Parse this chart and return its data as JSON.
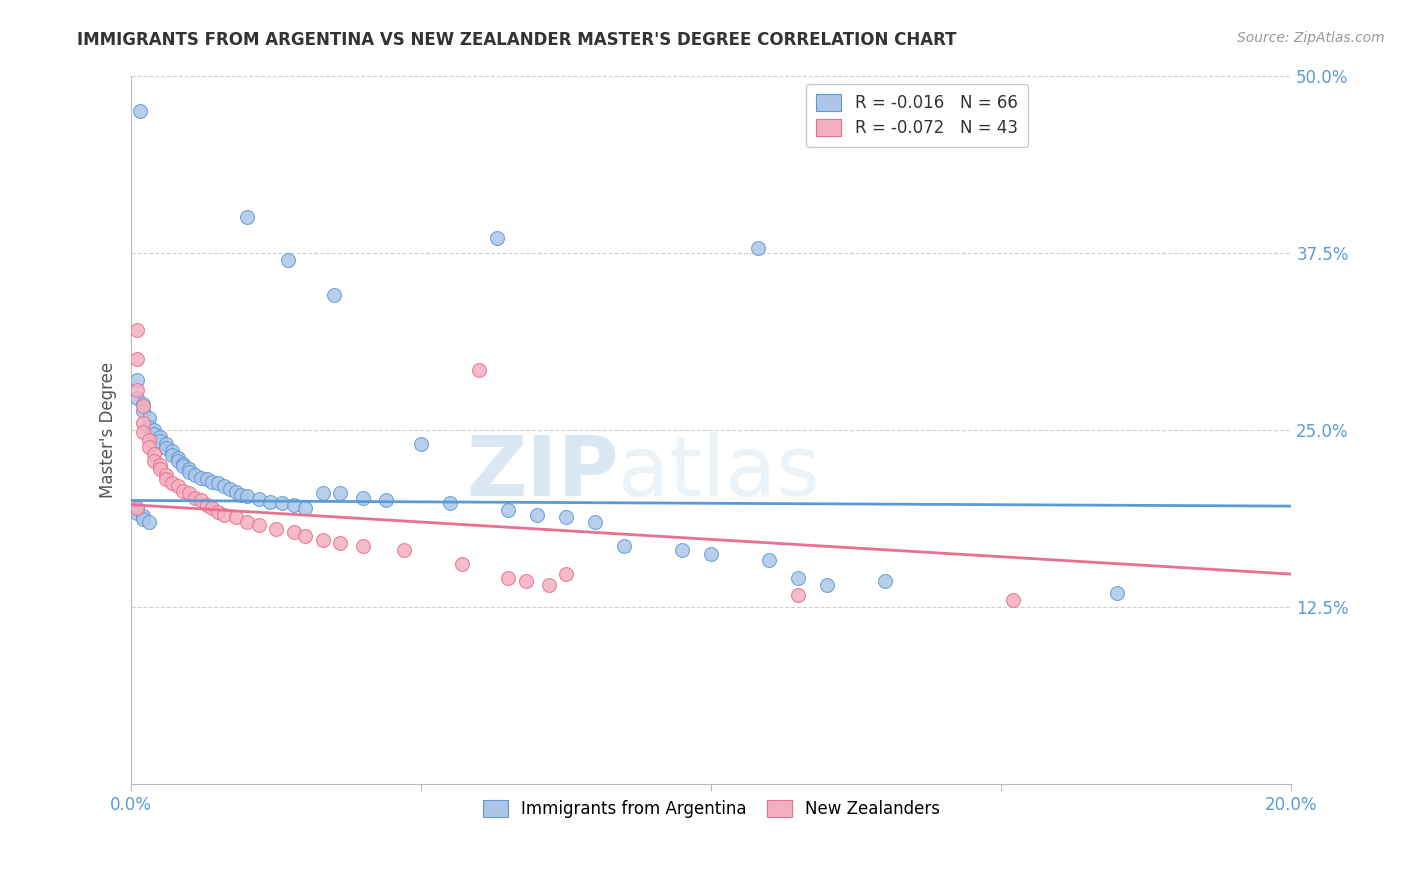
{
  "title": "IMMIGRANTS FROM ARGENTINA VS NEW ZEALANDER MASTER'S DEGREE CORRELATION CHART",
  "source": "Source: ZipAtlas.com",
  "ylabel_label": "Master's Degree",
  "xlim": [
    0.0,
    0.2
  ],
  "ylim": [
    0.0,
    0.5
  ],
  "xtick_positions": [
    0.0,
    0.05,
    0.1,
    0.15,
    0.2
  ],
  "xtick_labels": [
    "0.0%",
    "",
    "",
    "",
    "20.0%"
  ],
  "ytick_positions": [
    0.0,
    0.125,
    0.25,
    0.375,
    0.5
  ],
  "ytick_labels": [
    "",
    "12.5%",
    "25.0%",
    "37.5%",
    "50.0%"
  ],
  "watermark_zip": "ZIP",
  "watermark_atlas": "atlas",
  "blue_scatter": [
    [
      0.0015,
      0.475
    ],
    [
      0.02,
      0.4
    ],
    [
      0.027,
      0.37
    ],
    [
      0.035,
      0.345
    ],
    [
      0.063,
      0.385
    ],
    [
      0.108,
      0.378
    ],
    [
      0.001,
      0.285
    ],
    [
      0.001,
      0.272
    ],
    [
      0.002,
      0.268
    ],
    [
      0.002,
      0.263
    ],
    [
      0.003,
      0.258
    ],
    [
      0.003,
      0.252
    ],
    [
      0.004,
      0.25
    ],
    [
      0.004,
      0.247
    ],
    [
      0.005,
      0.245
    ],
    [
      0.005,
      0.242
    ],
    [
      0.006,
      0.24
    ],
    [
      0.006,
      0.237
    ],
    [
      0.007,
      0.235
    ],
    [
      0.007,
      0.232
    ],
    [
      0.008,
      0.23
    ],
    [
      0.008,
      0.228
    ],
    [
      0.009,
      0.226
    ],
    [
      0.009,
      0.224
    ],
    [
      0.01,
      0.222
    ],
    [
      0.01,
      0.22
    ],
    [
      0.011,
      0.218
    ],
    [
      0.012,
      0.216
    ],
    [
      0.013,
      0.215
    ],
    [
      0.014,
      0.213
    ],
    [
      0.015,
      0.212
    ],
    [
      0.016,
      0.21
    ],
    [
      0.017,
      0.208
    ],
    [
      0.018,
      0.206
    ],
    [
      0.019,
      0.204
    ],
    [
      0.02,
      0.203
    ],
    [
      0.022,
      0.201
    ],
    [
      0.024,
      0.199
    ],
    [
      0.026,
      0.198
    ],
    [
      0.028,
      0.197
    ],
    [
      0.03,
      0.195
    ],
    [
      0.033,
      0.205
    ],
    [
      0.036,
      0.205
    ],
    [
      0.04,
      0.202
    ],
    [
      0.044,
      0.2
    ],
    [
      0.05,
      0.24
    ],
    [
      0.055,
      0.198
    ],
    [
      0.065,
      0.193
    ],
    [
      0.07,
      0.19
    ],
    [
      0.075,
      0.188
    ],
    [
      0.08,
      0.185
    ],
    [
      0.085,
      0.168
    ],
    [
      0.095,
      0.165
    ],
    [
      0.1,
      0.162
    ],
    [
      0.11,
      0.158
    ],
    [
      0.115,
      0.145
    ],
    [
      0.12,
      0.14
    ],
    [
      0.13,
      0.143
    ],
    [
      0.17,
      0.135
    ],
    [
      0.001,
      0.195
    ],
    [
      0.001,
      0.193
    ],
    [
      0.001,
      0.191
    ],
    [
      0.002,
      0.189
    ],
    [
      0.002,
      0.187
    ],
    [
      0.003,
      0.185
    ]
  ],
  "pink_scatter": [
    [
      0.001,
      0.32
    ],
    [
      0.001,
      0.3
    ],
    [
      0.001,
      0.278
    ],
    [
      0.002,
      0.267
    ],
    [
      0.002,
      0.255
    ],
    [
      0.002,
      0.248
    ],
    [
      0.003,
      0.243
    ],
    [
      0.003,
      0.238
    ],
    [
      0.004,
      0.233
    ],
    [
      0.004,
      0.228
    ],
    [
      0.005,
      0.225
    ],
    [
      0.005,
      0.222
    ],
    [
      0.006,
      0.218
    ],
    [
      0.006,
      0.215
    ],
    [
      0.007,
      0.212
    ],
    [
      0.008,
      0.21
    ],
    [
      0.009,
      0.207
    ],
    [
      0.01,
      0.205
    ],
    [
      0.011,
      0.202
    ],
    [
      0.012,
      0.2
    ],
    [
      0.013,
      0.197
    ],
    [
      0.014,
      0.195
    ],
    [
      0.015,
      0.192
    ],
    [
      0.016,
      0.19
    ],
    [
      0.018,
      0.188
    ],
    [
      0.02,
      0.185
    ],
    [
      0.022,
      0.183
    ],
    [
      0.025,
      0.18
    ],
    [
      0.028,
      0.178
    ],
    [
      0.03,
      0.175
    ],
    [
      0.033,
      0.172
    ],
    [
      0.036,
      0.17
    ],
    [
      0.04,
      0.168
    ],
    [
      0.047,
      0.165
    ],
    [
      0.057,
      0.155
    ],
    [
      0.06,
      0.292
    ],
    [
      0.065,
      0.145
    ],
    [
      0.068,
      0.143
    ],
    [
      0.072,
      0.14
    ],
    [
      0.075,
      0.148
    ],
    [
      0.115,
      0.133
    ],
    [
      0.152,
      0.13
    ],
    [
      0.001,
      0.195
    ]
  ],
  "blue_line_x": [
    0.0,
    0.2
  ],
  "blue_line_y": [
    0.2,
    0.196
  ],
  "pink_line_x": [
    0.0,
    0.2
  ],
  "pink_line_y": [
    0.197,
    0.148
  ],
  "blue_color": "#5b9bd5",
  "pink_color": "#e87090",
  "blue_fill": "#adc6e8",
  "pink_fill": "#f4b0c0",
  "marker_size": 100,
  "grid_color": "#cccccc",
  "background_color": "#ffffff",
  "tick_color": "#5b9bd5",
  "ylabel_color": "#555555",
  "title_color": "#333333",
  "title_fontsize": 12,
  "source_fontsize": 10
}
